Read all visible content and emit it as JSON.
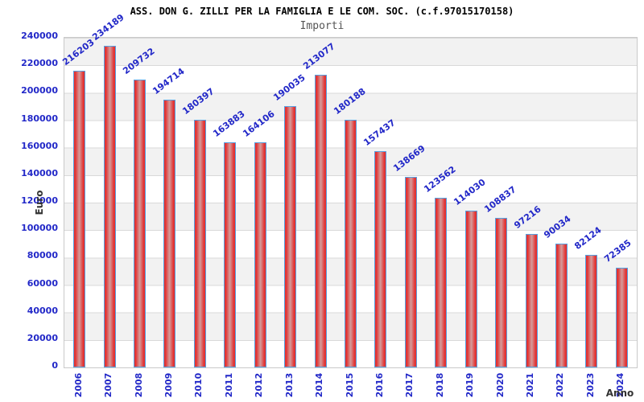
{
  "chart_data": {
    "type": "bar",
    "title": "ASS. DON G. ZILLI PER LA FAMIGLIA E LE COM. SOC. (c.f.97015170158)",
    "subtitle": "Importi",
    "xlabel": "Anno",
    "ylabel": "Euro",
    "categories": [
      "2006",
      "2007",
      "2008",
      "2009",
      "2010",
      "2011",
      "2012",
      "2013",
      "2014",
      "2015",
      "2016",
      "2017",
      "2018",
      "2019",
      "2020",
      "2021",
      "2022",
      "2023",
      "2024"
    ],
    "values": [
      216203,
      234189,
      209732,
      194714,
      180397,
      163883,
      164106,
      190035,
      213077,
      180188,
      157437,
      138669,
      123562,
      114030,
      108837,
      97216,
      90034,
      82124,
      72385
    ],
    "ylim": [
      0,
      240000
    ],
    "yticks": [
      0,
      20000,
      40000,
      60000,
      80000,
      100000,
      120000,
      140000,
      160000,
      180000,
      200000,
      220000,
      240000
    ],
    "grid": "on",
    "legend": "none",
    "band_colors": [
      "#f2f2f2",
      "#ffffff"
    ],
    "colors": {
      "bar_edge": "#e23333",
      "bar_mid": "#d49c9c",
      "bar_border": "#56a0e0",
      "tick_label": "#2228c8",
      "value_label": "#2228c8",
      "axis_title": "#333333",
      "title": "#000000",
      "subtitle": "#555555"
    }
  }
}
